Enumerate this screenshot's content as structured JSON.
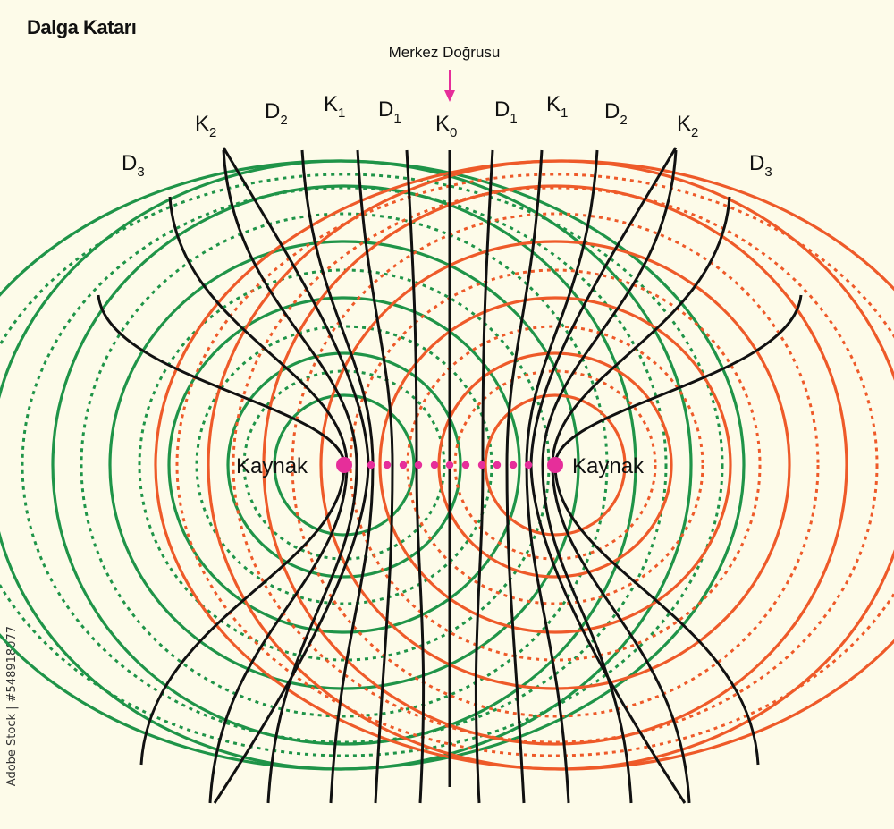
{
  "title": "Dalga Katarı",
  "watermark": "Adobe Stock | #548918077",
  "center_line_label": "Merkez Doğrusu",
  "source_labels": {
    "left": "Kaynak",
    "right": "Kaynak"
  },
  "line_labels": {
    "left": [
      {
        "letter": "D",
        "sub": "3"
      },
      {
        "letter": "K",
        "sub": "2"
      },
      {
        "letter": "D",
        "sub": "2"
      },
      {
        "letter": "K",
        "sub": "1"
      },
      {
        "letter": "D",
        "sub": "1"
      }
    ],
    "center": {
      "letter": "K",
      "sub": "0"
    },
    "right": [
      {
        "letter": "D",
        "sub": "1"
      },
      {
        "letter": "K",
        "sub": "1"
      },
      {
        "letter": "D",
        "sub": "2"
      },
      {
        "letter": "K",
        "sub": "2"
      },
      {
        "letter": "D",
        "sub": "3"
      }
    ]
  },
  "colors": {
    "left_wave": "#1f9448",
    "right_wave": "#ee5a29",
    "nodal_line": "#111111",
    "source": "#e62e9a",
    "background": "#fdfbe9"
  }
}
